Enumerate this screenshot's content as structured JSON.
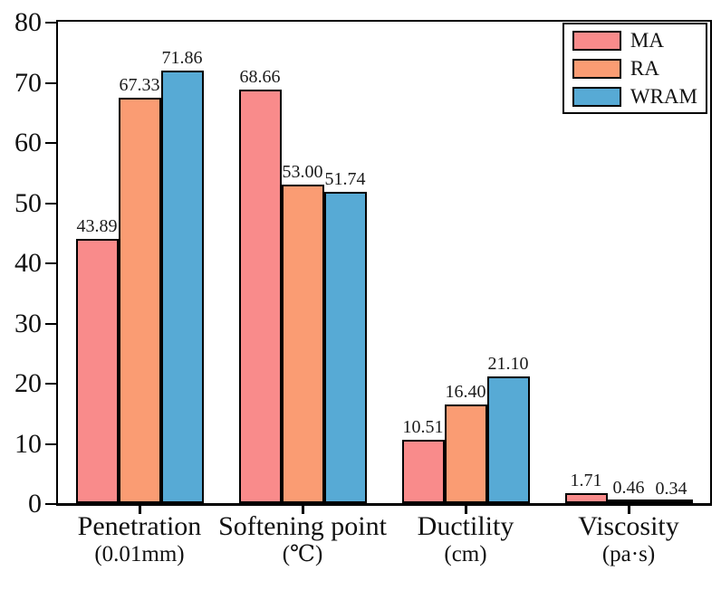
{
  "figure": {
    "background": "#ffffff",
    "ink_color": "#111111"
  },
  "chart_data": {
    "type": "bar",
    "title": "",
    "xlabel": "",
    "ylabel": "",
    "categories": [
      {
        "label": "Penetration",
        "unit": "(0.01mm)"
      },
      {
        "label": "Softening point",
        "unit": "(℃)"
      },
      {
        "label": "Ductility",
        "unit": "(cm)"
      },
      {
        "label": "Viscosity",
        "unit": "(pa·s)"
      }
    ],
    "series": [
      {
        "name": "MA",
        "color": "#f98b8b",
        "values": [
          43.89,
          68.66,
          10.51,
          1.71
        ]
      },
      {
        "name": "RA",
        "color": "#fa9c73",
        "values": [
          67.33,
          53.0,
          16.4,
          0.46
        ]
      },
      {
        "name": "WRAM",
        "color": "#57aad5",
        "values": [
          71.86,
          51.74,
          21.1,
          0.34
        ]
      }
    ],
    "value_label_decimals": 2,
    "ylim": [
      0,
      80
    ],
    "yticks": [
      0,
      10,
      20,
      30,
      40,
      50,
      60,
      70,
      80
    ],
    "grid": false,
    "bar_border_color": "#000000",
    "legend": {
      "position": "top-right"
    }
  }
}
